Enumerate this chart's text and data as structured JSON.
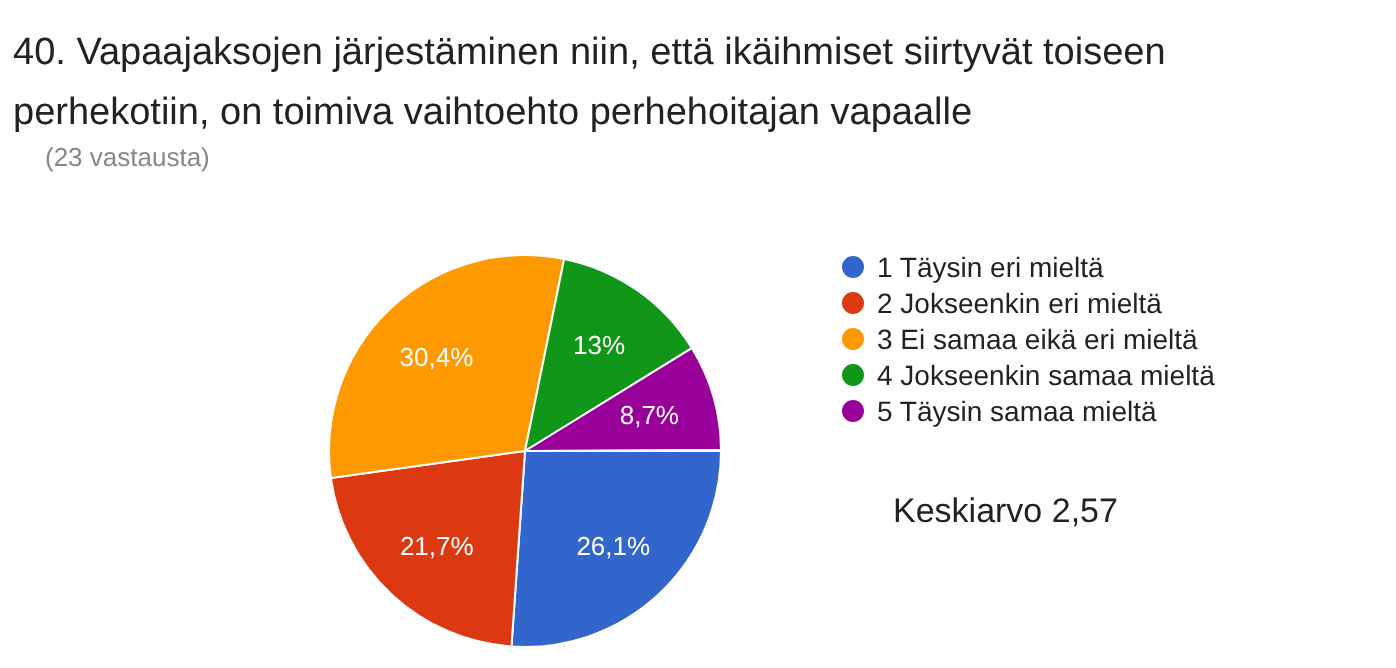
{
  "chart_data": {
    "type": "pie",
    "title": "40. Vapaajaksojen järjestäminen niin, että ikäihmiset siirtyvät toiseen perhekotiin, on toimiva vaihtoehto perhehoitajan vapaalle",
    "subtitle": "(23 vastausta)",
    "categories": [
      "1 Täysin eri mieltä",
      "2 Jokseenkin eri mieltä",
      "3 Ei samaa eikä eri mieltä",
      "4 Jokseenkin samaa mieltä",
      "5 Täysin samaa mieltä"
    ],
    "values": [
      26.1,
      21.7,
      30.4,
      13,
      8.7
    ],
    "value_labels": [
      "26,1%",
      "21,7%",
      "30,4%",
      "13%",
      "8,7%"
    ],
    "colors": [
      "#3366cc",
      "#dc3912",
      "#ff9900",
      "#109618",
      "#990099"
    ],
    "legend": "right",
    "annotations": [
      "Keskiarvo 2,57"
    ]
  }
}
